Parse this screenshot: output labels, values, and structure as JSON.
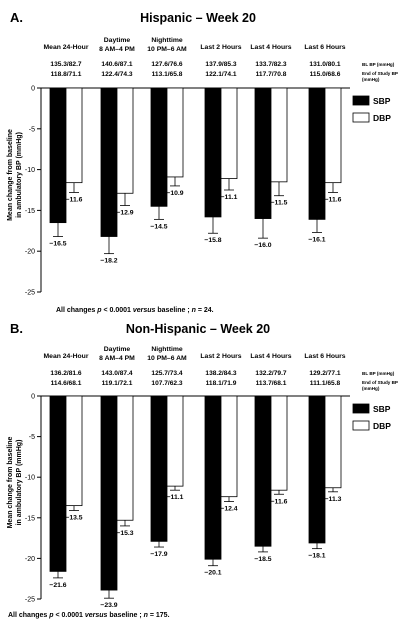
{
  "chart_data": [
    {
      "type": "bar",
      "panel_letter": "A.",
      "title": "Hispanic – Week 20",
      "ylabel": "Mean change from baseline in ambulatory BP (mmHg)",
      "ylim": [
        -25,
        0
      ],
      "yticks": [
        0,
        -5,
        -10,
        -15,
        -20,
        -25
      ],
      "ytick_labels": [
        "0",
        "-5",
        "-10",
        "-15",
        "-20",
        "-25"
      ],
      "categories": [
        [
          "Mean 24-Hour"
        ],
        [
          "Daytime",
          "8 AM–4 PM"
        ],
        [
          "Nighttime",
          "10 PM–6 AM"
        ],
        [
          "Last 2 Hours"
        ],
        [
          "Last 4 Hours"
        ],
        [
          "Last 6 Hours"
        ]
      ],
      "bl_row": [
        "135.3/82.7",
        "140.6/87.1",
        "127.6/76.6",
        "137.9/85.3",
        "133.7/82.3",
        "131.0/80.1"
      ],
      "eos_row": [
        "118.8/71.1",
        "122.4/74.3",
        "113.1/65.8",
        "122.1/74.1",
        "117.7/70.8",
        "115.0/68.6"
      ],
      "row_labels": {
        "bl": "BL BP (mmHg)",
        "eos_1": "End of Study BP",
        "eos_2": "(mmHg)"
      },
      "series": [
        {
          "name": "SBP",
          "color": "#000000",
          "values": [
            -16.5,
            -18.2,
            -14.5,
            -15.8,
            -16.0,
            -16.1
          ],
          "errors": [
            1.7,
            2.1,
            1.6,
            2.0,
            2.4,
            1.6
          ],
          "labels": [
            "−16.5",
            "−18.2",
            "−14.5",
            "−15.8",
            "−16.0",
            "−16.1"
          ]
        },
        {
          "name": "DBP",
          "color": "#ffffff",
          "values": [
            -11.6,
            -12.9,
            -10.9,
            -11.1,
            -11.5,
            -11.6
          ],
          "errors": [
            1.2,
            1.5,
            1.1,
            1.4,
            1.7,
            1.2
          ],
          "labels": [
            "−11.6",
            "−12.9",
            "−10.9",
            "−11.1",
            "−11.5",
            "−11.6"
          ]
        }
      ],
      "legend": "top-right",
      "footnote": [
        {
          "text": "All changes ",
          "style": "bold"
        },
        {
          "text": "p",
          "style": "bold-italic"
        },
        {
          "text": " < 0.0001 ",
          "style": "bold"
        },
        {
          "text": "versus",
          "style": "bold-italic"
        },
        {
          "text": " baseline ; ",
          "style": "bold"
        },
        {
          "text": "n",
          "style": "bold-italic"
        },
        {
          "text": " = 24.",
          "style": "bold"
        }
      ]
    },
    {
      "type": "bar",
      "panel_letter": "B.",
      "title": "Non-Hispanic – Week 20",
      "ylabel": "Mean change from baseline in ambulatory BP (mmHg)",
      "ylim": [
        -25,
        0
      ],
      "yticks": [
        0,
        -5,
        -10,
        -15,
        -20,
        -25
      ],
      "ytick_labels": [
        "0",
        "-5",
        "-10",
        "-15",
        "-20",
        "-25"
      ],
      "categories": [
        [
          "Mean 24-Hour"
        ],
        [
          "Daytime",
          "8 AM–4 PM"
        ],
        [
          "Nighttime",
          "10 PM–6 AM"
        ],
        [
          "Last 2 Hours"
        ],
        [
          "Last 4 Hours"
        ],
        [
          "Last 6 Hours"
        ]
      ],
      "bl_row": [
        "136.2/81.6",
        "143.0/87.4",
        "125.7/73.4",
        "138.2/84.3",
        "132.2/79.7",
        "129.2/77.1"
      ],
      "eos_row": [
        "114.6/68.1",
        "119.1/72.1",
        "107.7/62.3",
        "118.1/71.9",
        "113.7/68.1",
        "111.1/65.8"
      ],
      "row_labels": {
        "bl": "BL BP (mmHg)",
        "eos_1": "End of Study BP",
        "eos_2": "(mmHg)"
      },
      "series": [
        {
          "name": "SBP",
          "color": "#000000",
          "values": [
            -21.6,
            -23.9,
            -17.9,
            -20.1,
            -18.5,
            -18.1
          ],
          "errors": [
            0.8,
            1.0,
            0.7,
            0.8,
            0.7,
            0.7
          ],
          "labels": [
            "−21.6",
            "−23.9",
            "−17.9",
            "−20.1",
            "−18.5",
            "−18.1"
          ]
        },
        {
          "name": "DBP",
          "color": "#ffffff",
          "values": [
            -13.5,
            -15.3,
            -11.1,
            -12.4,
            -11.6,
            -11.3
          ],
          "errors": [
            0.6,
            0.7,
            0.5,
            0.6,
            0.5,
            0.5
          ],
          "labels": [
            "−13.5",
            "−15.3",
            "−11.1",
            "−12.4",
            "−11.6",
            "−11.3"
          ]
        }
      ],
      "legend": "top-right",
      "footnote": [
        {
          "text": "All changes ",
          "style": "bold"
        },
        {
          "text": "p",
          "style": "bold-italic"
        },
        {
          "text": " < 0.0001 ",
          "style": "bold"
        },
        {
          "text": "versus",
          "style": "bold-italic"
        },
        {
          "text": " baseline ; ",
          "style": "bold"
        },
        {
          "text": "n",
          "style": "bold-italic"
        },
        {
          "text": " = 175.",
          "style": "bold"
        }
      ]
    }
  ]
}
